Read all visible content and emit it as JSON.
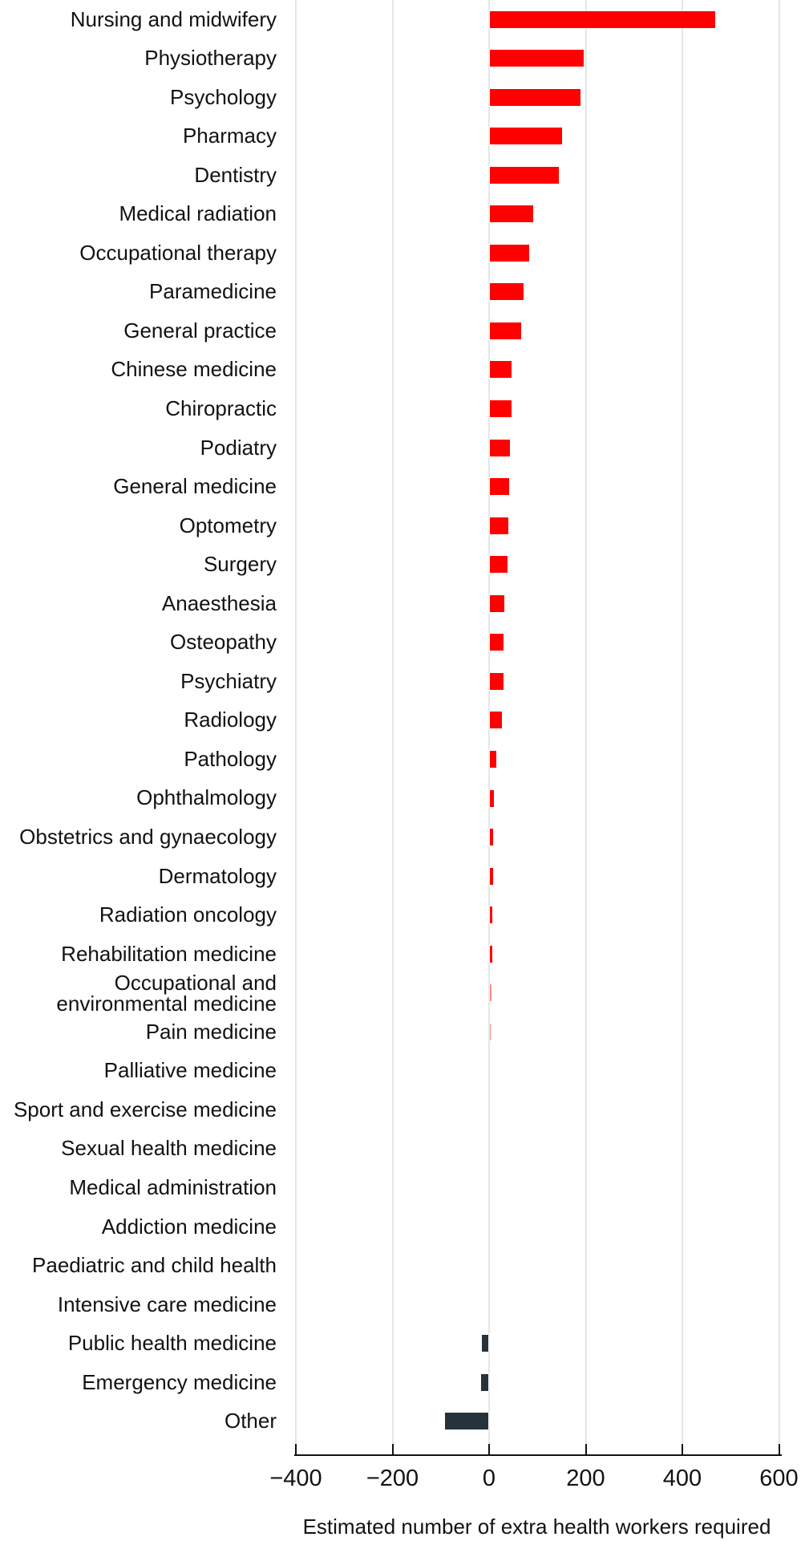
{
  "chart_data": {
    "type": "bar",
    "orientation": "horizontal",
    "title": "",
    "xlabel": "Estimated number of extra health workers required",
    "ylabel": "",
    "xlim": [
      -400,
      600
    ],
    "x_ticks": [
      -400,
      -200,
      0,
      200,
      400,
      600
    ],
    "x_tick_labels": [
      "−400",
      "−200",
      "0",
      "200",
      "400",
      "600"
    ],
    "grid": true,
    "legend": false,
    "categories": [
      "Nursing and midwifery",
      "Physiotherapy",
      "Psychology",
      "Pharmacy",
      "Dentistry",
      "Medical radiation",
      "Occupational therapy",
      "Paramedicine",
      "General practice",
      "Chinese medicine",
      "Chiropractic",
      "Podiatry",
      "General medicine",
      "Optometry",
      "Surgery",
      "Anaesthesia",
      "Osteopathy",
      "Psychiatry",
      "Radiology",
      "Pathology",
      "Ophthalmology",
      "Obstetrics and gynaecology",
      "Dermatology",
      "Radiation oncology",
      "Rehabilitation medicine",
      "Occupational and\nenvironmental medicine",
      "Pain medicine",
      "Palliative medicine",
      "Sport and exercise medicine",
      "Sexual health medicine",
      "Medical administration",
      "Addiction medicine",
      "Paediatric and child health",
      "Intensive care medicine",
      "Public health medicine",
      "Emergency medicine",
      "Other"
    ],
    "values": [
      467,
      195,
      187,
      150,
      142,
      90,
      82,
      69,
      65,
      45,
      44,
      42,
      40,
      39,
      36,
      30,
      28,
      28,
      25,
      13,
      8,
      7,
      6,
      5,
      5,
      3,
      2,
      0,
      0,
      0,
      0,
      0,
      0,
      0,
      -13,
      -15,
      -90
    ],
    "positive_color": "#ff0000",
    "negative_color": "#28323a",
    "gridline_color": "#e2e8e5",
    "axis_color": "#121212",
    "text_color": "#121212",
    "background_color": "#ffffff"
  }
}
